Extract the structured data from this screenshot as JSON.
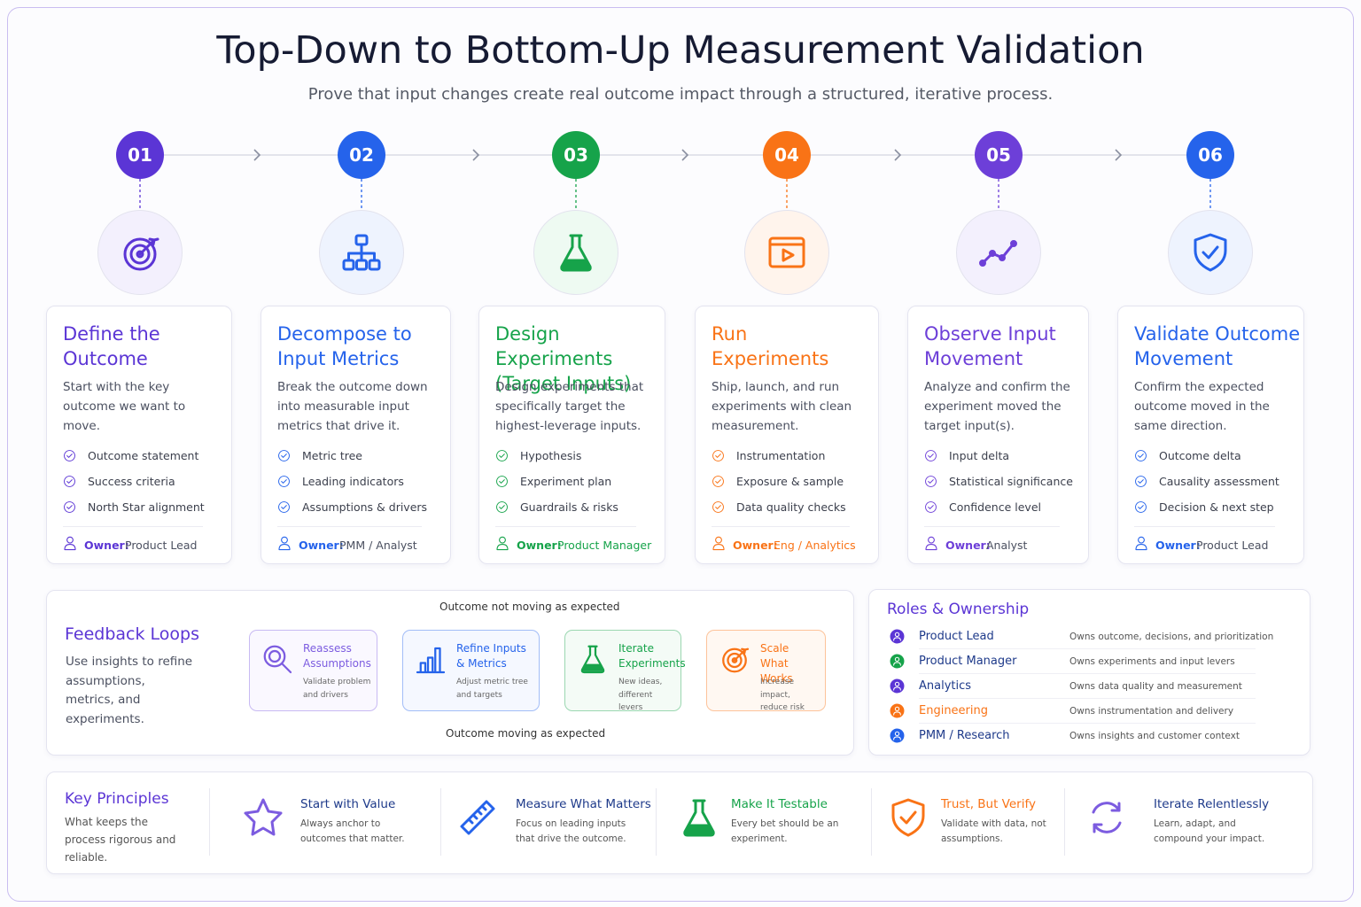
{
  "header": {
    "title": "Top-Down to Bottom-Up Measurement Validation",
    "subtitle": "Prove that input changes create real outcome impact through a structured, iterative process."
  },
  "steps": [
    {
      "number": "01",
      "title": "Define the Outcome",
      "description": "Start with the key outcome we want to move.",
      "items": [
        "Outcome statement",
        "Success criteria",
        "North Star alignment"
      ],
      "owner_label": "Owner:",
      "owner": "Product Lead"
    },
    {
      "number": "02",
      "title": "Decompose to Input Metrics",
      "description": "Break the outcome down into measurable input metrics that drive it.",
      "items": [
        "Metric tree",
        "Leading indicators",
        "Assumptions & drivers"
      ],
      "owner_label": "Owner:",
      "owner": "PMM / Analyst"
    },
    {
      "number": "03",
      "title": "Design Experiments (Target Inputs)",
      "description": "Design experiments that specifically target the highest-leverage inputs.",
      "items": [
        "Hypothesis",
        "Experiment plan",
        "Guardrails & risks"
      ],
      "owner_label": "Owner:",
      "owner": "Product Manager"
    },
    {
      "number": "04",
      "title": "Run Experiments",
      "description": "Ship, launch, and run experiments with clean measurement.",
      "items": [
        "Instrumentation",
        "Exposure & sample",
        "Data quality checks"
      ],
      "owner_label": "Owner:",
      "owner": "Eng / Analytics"
    },
    {
      "number": "05",
      "title": "Observe Input Movement",
      "description": "Analyze and confirm the experiment moved the target input(s).",
      "items": [
        "Input delta",
        "Statistical significance",
        "Confidence level"
      ],
      "owner_label": "Owner:",
      "owner": "Analyst"
    },
    {
      "number": "06",
      "title": "Validate Outcome Movement",
      "description": "Confirm the expected outcome moved in the same direction.",
      "items": [
        "Outcome delta",
        "Causality assessment",
        "Decision & next step"
      ],
      "owner_label": "Owner:",
      "owner": "Product Lead"
    }
  ],
  "feedback": {
    "title": "Feedback Loops",
    "description": "Use insights to refine assumptions, metrics, and experiments.",
    "loop_top": "Outcome not moving as expected",
    "loop_bottom": "Outcome moving as expected",
    "nodes": [
      {
        "title": "Reassess Assumptions",
        "description": "Validate problem and drivers"
      },
      {
        "title": "Refine Inputs & Metrics",
        "description": "Adjust metric tree and targets"
      },
      {
        "title": "Iterate Experiments",
        "description": "New ideas, different levers"
      },
      {
        "title": "Scale What Works",
        "description": "Increase impact, reduce risk"
      }
    ]
  },
  "roles": {
    "title": "Roles & Ownership",
    "rows": [
      {
        "role": "Product Lead",
        "description": "Owns outcome, decisions, and prioritization"
      },
      {
        "role": "Product Manager",
        "description": "Owns experiments and input levers"
      },
      {
        "role": "Analytics",
        "description": "Owns data quality and measurement"
      },
      {
        "role": "Engineering",
        "description": "Owns instrumentation and delivery"
      },
      {
        "role": "PMM / Research",
        "description": "Owns insights and customer context"
      }
    ]
  },
  "principles": {
    "title": "Key Principles",
    "description": "What keeps the process rigorous and reliable.",
    "items": [
      {
        "title": "Start with Value",
        "description": "Always anchor to outcomes that matter."
      },
      {
        "title": "Measure What Matters",
        "description": "Focus on leading inputs that drive the outcome."
      },
      {
        "title": "Make It Testable",
        "description": "Every bet should be an experiment."
      },
      {
        "title": "Trust, But Verify",
        "description": "Validate with data, not assumptions."
      },
      {
        "title": "Iterate Relentlessly",
        "description": "Learn, adapt, and compound your impact."
      }
    ]
  }
}
